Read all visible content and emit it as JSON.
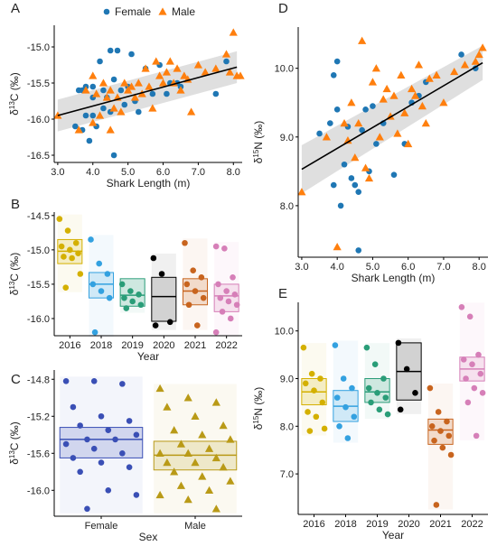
{
  "colors": {
    "female": "#1f77b4",
    "male": "#ff7f0e",
    "fit_line": "#000000",
    "ci_band": "#d9d9d9",
    "years": {
      "2016": "#d4b000",
      "2018": "#33a1e0",
      "2019": "#2a9d78",
      "2020": "#000000",
      "2021": "#c8641e",
      "2022": "#d67fb8"
    },
    "sex": {
      "Female": "#3a4fb5",
      "Male": "#b99a17"
    }
  },
  "chart_data": [
    {
      "panel": "A",
      "type": "scatter",
      "xlabel": "Shark Length (m)",
      "ylabel": "δ13C (‰)",
      "ylabel_parts": {
        "pre": "δ",
        "sup": "13",
        "post": "C (‰)"
      },
      "xlim": [
        2.9,
        8.25
      ],
      "ylim": [
        -16.6,
        -14.7
      ],
      "xticks": [
        3.0,
        4.0,
        5.0,
        6.0,
        7.0,
        8.0
      ],
      "yticks": [
        -16.5,
        -16.0,
        -15.5,
        -15.0
      ],
      "legend": {
        "placement": "top",
        "entries": [
          "Female",
          "Male"
        ]
      },
      "fit": {
        "x": [
          3.0,
          8.1
        ],
        "y": [
          -15.95,
          -15.28
        ],
        "ci_halfwidth": [
          0.22,
          0.22
        ]
      },
      "series": [
        {
          "name": "Female",
          "marker": "circle",
          "points": [
            [
              3.5,
              -16.1
            ],
            [
              3.6,
              -15.6
            ],
            [
              3.7,
              -15.6
            ],
            [
              3.7,
              -16.15
            ],
            [
              3.8,
              -15.55
            ],
            [
              3.8,
              -15.95
            ],
            [
              3.9,
              -16.3
            ],
            [
              4.0,
              -15.55
            ],
            [
              4.0,
              -15.7
            ],
            [
              4.0,
              -15.95
            ],
            [
              4.1,
              -16.1
            ],
            [
              4.2,
              -15.2
            ],
            [
              4.3,
              -15.6
            ],
            [
              4.3,
              -15.85
            ],
            [
              4.4,
              -15.7
            ],
            [
              4.5,
              -15.05
            ],
            [
              4.5,
              -15.9
            ],
            [
              4.6,
              -16.5
            ],
            [
              4.6,
              -15.45
            ],
            [
              4.7,
              -15.05
            ],
            [
              4.8,
              -15.6
            ],
            [
              4.9,
              -15.8
            ],
            [
              5.0,
              -15.55
            ],
            [
              5.1,
              -15.1
            ],
            [
              5.2,
              -15.75
            ],
            [
              5.3,
              -15.9
            ],
            [
              5.5,
              -15.3
            ],
            [
              5.7,
              -15.65
            ],
            [
              5.9,
              -15.25
            ],
            [
              6.1,
              -15.65
            ],
            [
              6.2,
              -15.5
            ],
            [
              6.4,
              -15.5
            ],
            [
              6.5,
              -15.55
            ],
            [
              7.5,
              -15.65
            ],
            [
              7.8,
              -15.2
            ]
          ]
        },
        {
          "name": "Male",
          "marker": "triangle",
          "points": [
            [
              3.0,
              -15.95
            ],
            [
              3.6,
              -16.15
            ],
            [
              3.8,
              -15.6
            ],
            [
              4.0,
              -15.4
            ],
            [
              4.0,
              -16.05
            ],
            [
              4.1,
              -15.65
            ],
            [
              4.2,
              -15.95
            ],
            [
              4.3,
              -15.5
            ],
            [
              4.4,
              -15.7
            ],
            [
              4.5,
              -15.6
            ],
            [
              4.5,
              -16.15
            ],
            [
              4.6,
              -15.85
            ],
            [
              4.7,
              -15.7
            ],
            [
              4.8,
              -15.9
            ],
            [
              4.9,
              -15.5
            ],
            [
              5.0,
              -15.6
            ],
            [
              5.1,
              -15.55
            ],
            [
              5.2,
              -15.7
            ],
            [
              5.3,
              -15.5
            ],
            [
              5.4,
              -15.65
            ],
            [
              5.5,
              -15.3
            ],
            [
              5.6,
              -15.55
            ],
            [
              5.7,
              -15.85
            ],
            [
              5.8,
              -15.2
            ],
            [
              5.9,
              -15.4
            ],
            [
              6.0,
              -15.5
            ],
            [
              6.1,
              -15.35
            ],
            [
              6.2,
              -15.2
            ],
            [
              6.3,
              -15.5
            ],
            [
              6.4,
              -15.3
            ],
            [
              6.5,
              -15.6
            ],
            [
              6.6,
              -15.4
            ],
            [
              6.7,
              -15.45
            ],
            [
              6.8,
              -15.9
            ],
            [
              7.0,
              -15.25
            ],
            [
              7.2,
              -15.35
            ],
            [
              7.5,
              -15.3
            ],
            [
              7.8,
              -15.1
            ],
            [
              7.9,
              -15.35
            ],
            [
              8.0,
              -14.8
            ],
            [
              8.1,
              -15.4
            ],
            [
              8.2,
              -15.4
            ]
          ]
        }
      ]
    },
    {
      "panel": "B",
      "type": "box",
      "xlabel": "Year",
      "ylabel": "δ13C (‰)",
      "ylabel_parts": {
        "pre": "δ",
        "sup": "13",
        "post": "C (‰)"
      },
      "ylim": [
        -16.25,
        -14.45
      ],
      "yticks": [
        -16.0,
        -15.5,
        -15.0,
        -14.5
      ],
      "categories": [
        "2016",
        "2018",
        "2019",
        "2020",
        "2021",
        "2022"
      ],
      "boxes": [
        {
          "q1": -15.2,
          "median": -15.02,
          "q3": -14.85
        },
        {
          "q1": -15.7,
          "median": -15.5,
          "q3": -15.33
        },
        {
          "q1": -15.82,
          "median": -15.66,
          "q3": -15.42
        },
        {
          "q1": -16.04,
          "median": -15.68,
          "q3": -15.4
        },
        {
          "q1": -15.8,
          "median": -15.6,
          "q3": -15.42
        },
        {
          "q1": -15.9,
          "median": -15.67,
          "q3": -15.5
        }
      ],
      "points": [
        [
          -14.55,
          -14.72,
          -14.9,
          -14.95,
          -15.0,
          -15.05,
          -15.1,
          -15.12,
          -15.35,
          -15.55
        ],
        [
          -14.85,
          -15.2,
          -15.35,
          -15.5,
          -15.6,
          -15.7,
          -16.2
        ],
        [
          -15.5,
          -15.6,
          -15.65,
          -15.7,
          -15.75,
          -15.8,
          -15.85
        ],
        [
          -15.12,
          -15.35,
          -16.05,
          -16.1
        ],
        [
          -14.9,
          -15.3,
          -15.4,
          -15.5,
          -15.6,
          -15.7,
          -15.8,
          -16.1
        ],
        [
          -14.95,
          -14.98,
          -15.4,
          -15.5,
          -15.6,
          -15.65,
          -15.7,
          -15.75,
          -15.8,
          -15.9,
          -16.0,
          -16.2
        ]
      ]
    },
    {
      "panel": "C",
      "type": "box",
      "xlabel": "Sex",
      "ylabel": "δ13C (‰)",
      "ylabel_parts": {
        "pre": "δ",
        "sup": "13",
        "post": "C (‰)"
      },
      "ylim": [
        -16.28,
        -14.7
      ],
      "yticks": [
        -16.0,
        -15.6,
        -15.2,
        -14.8
      ],
      "categories": [
        "Female",
        "Male"
      ],
      "boxes": [
        {
          "q1": -15.65,
          "median": -15.45,
          "q3": -15.32
        },
        {
          "q1": -15.78,
          "median": -15.62,
          "q3": -15.47
        }
      ],
      "points": [
        [
          -14.82,
          -14.82,
          -14.85,
          -15.1,
          -15.2,
          -15.25,
          -15.3,
          -15.35,
          -15.4,
          -15.45,
          -15.45,
          -15.5,
          -15.55,
          -15.6,
          -15.65,
          -15.7,
          -15.75,
          -15.8,
          -16.0,
          -16.05,
          -16.2
        ],
        [
          -14.9,
          -15.0,
          -15.05,
          -15.1,
          -15.2,
          -15.3,
          -15.35,
          -15.4,
          -15.45,
          -15.5,
          -15.55,
          -15.6,
          -15.6,
          -15.65,
          -15.7,
          -15.7,
          -15.75,
          -15.8,
          -15.85,
          -15.9,
          -15.95,
          -16.0,
          -16.05,
          -16.1,
          -16.2
        ]
      ]
    },
    {
      "panel": "D",
      "type": "scatter",
      "xlabel": "Shark Length (m)",
      "ylabel": "δ15N (‰)",
      "ylabel_parts": {
        "pre": "δ",
        "sup": "15",
        "post": "N (‰)"
      },
      "xlim": [
        2.9,
        8.25
      ],
      "ylim": [
        7.25,
        10.6
      ],
      "xticks": [
        3.0,
        4.0,
        5.0,
        6.0,
        7.0,
        8.0
      ],
      "yticks": [
        8.0,
        9.0,
        10.0
      ],
      "fit": {
        "x": [
          3.0,
          8.1
        ],
        "y": [
          8.53,
          10.08
        ],
        "ci_halfwidth": [
          0.35,
          0.25
        ]
      },
      "series": [
        {
          "name": "Female",
          "marker": "circle",
          "points": [
            [
              3.5,
              9.05
            ],
            [
              3.8,
              9.2
            ],
            [
              3.9,
              8.3
            ],
            [
              3.9,
              9.9
            ],
            [
              4.0,
              10.1
            ],
            [
              4.0,
              9.4
            ],
            [
              4.1,
              8.0
            ],
            [
              4.2,
              8.6
            ],
            [
              4.3,
              9.15
            ],
            [
              4.4,
              8.4
            ],
            [
              4.5,
              8.3
            ],
            [
              4.6,
              8.2
            ],
            [
              4.6,
              7.35
            ],
            [
              4.7,
              9.1
            ],
            [
              4.8,
              9.4
            ],
            [
              4.9,
              8.5
            ],
            [
              5.0,
              9.45
            ],
            [
              5.1,
              8.9
            ],
            [
              5.3,
              9.2
            ],
            [
              5.6,
              8.45
            ],
            [
              5.9,
              8.9
            ],
            [
              6.1,
              9.5
            ],
            [
              6.3,
              9.6
            ],
            [
              6.5,
              9.8
            ],
            [
              7.5,
              10.2
            ],
            [
              7.9,
              10.0
            ]
          ]
        },
        {
          "name": "Male",
          "marker": "triangle",
          "points": [
            [
              3.0,
              8.2
            ],
            [
              3.7,
              9.0
            ],
            [
              4.0,
              7.4
            ],
            [
              4.2,
              9.2
            ],
            [
              4.3,
              8.95
            ],
            [
              4.4,
              9.5
            ],
            [
              4.5,
              8.7
            ],
            [
              4.6,
              9.2
            ],
            [
              4.7,
              10.4
            ],
            [
              4.8,
              8.55
            ],
            [
              4.9,
              8.4
            ],
            [
              5.0,
              9.8
            ],
            [
              5.1,
              10.0
            ],
            [
              5.2,
              9.0
            ],
            [
              5.3,
              9.55
            ],
            [
              5.4,
              9.7
            ],
            [
              5.5,
              9.3
            ],
            [
              5.6,
              9.6
            ],
            [
              5.7,
              9.05
            ],
            [
              5.8,
              9.9
            ],
            [
              5.9,
              9.35
            ],
            [
              6.0,
              8.9
            ],
            [
              6.1,
              9.7
            ],
            [
              6.2,
              9.6
            ],
            [
              6.3,
              10.05
            ],
            [
              6.4,
              9.45
            ],
            [
              6.5,
              9.2
            ],
            [
              6.6,
              9.85
            ],
            [
              6.8,
              9.9
            ],
            [
              7.0,
              9.5
            ],
            [
              7.3,
              9.95
            ],
            [
              7.6,
              10.05
            ],
            [
              7.9,
              10.1
            ],
            [
              8.0,
              10.2
            ],
            [
              8.1,
              10.3
            ]
          ]
        }
      ]
    },
    {
      "panel": "E",
      "type": "box",
      "xlabel": "Year",
      "ylabel": "δ15N (‰)",
      "ylabel_parts": {
        "pre": "δ",
        "sup": "15",
        "post": "N (‰)"
      },
      "ylim": [
        6.15,
        10.6
      ],
      "yticks": [
        7.0,
        8.0,
        9.0,
        10.0
      ],
      "categories": [
        "2016",
        "2018",
        "2019",
        "2020",
        "2021",
        "2022"
      ],
      "boxes": [
        {
          "q1": 8.45,
          "median": 8.72,
          "q3": 9.0
        },
        {
          "q1": 8.1,
          "median": 8.42,
          "q3": 8.75
        },
        {
          "q1": 8.5,
          "median": 8.72,
          "q3": 9.0
        },
        {
          "q1": 8.55,
          "median": 9.15,
          "q3": 9.75
        },
        {
          "q1": 7.62,
          "median": 7.92,
          "q3": 8.15
        },
        {
          "q1": 8.95,
          "median": 9.2,
          "q3": 9.45
        }
      ],
      "points": [
        [
          9.65,
          9.1,
          9.0,
          8.9,
          8.75,
          8.5,
          8.3,
          8.2,
          7.95,
          7.9
        ],
        [
          9.7,
          9.0,
          8.8,
          8.6,
          8.4,
          8.2,
          8.0,
          7.75
        ],
        [
          9.65,
          9.3,
          9.0,
          8.8,
          8.7,
          8.6,
          8.5,
          8.35,
          8.25
        ],
        [
          9.75,
          9.2,
          8.7,
          8.35
        ],
        [
          8.8,
          8.3,
          8.1,
          8.0,
          7.9,
          7.8,
          7.7,
          7.55,
          7.4,
          6.35
        ],
        [
          10.5,
          10.3,
          9.5,
          9.4,
          9.3,
          9.1,
          9.0,
          8.8,
          8.7,
          8.5,
          7.8
        ]
      ]
    }
  ]
}
